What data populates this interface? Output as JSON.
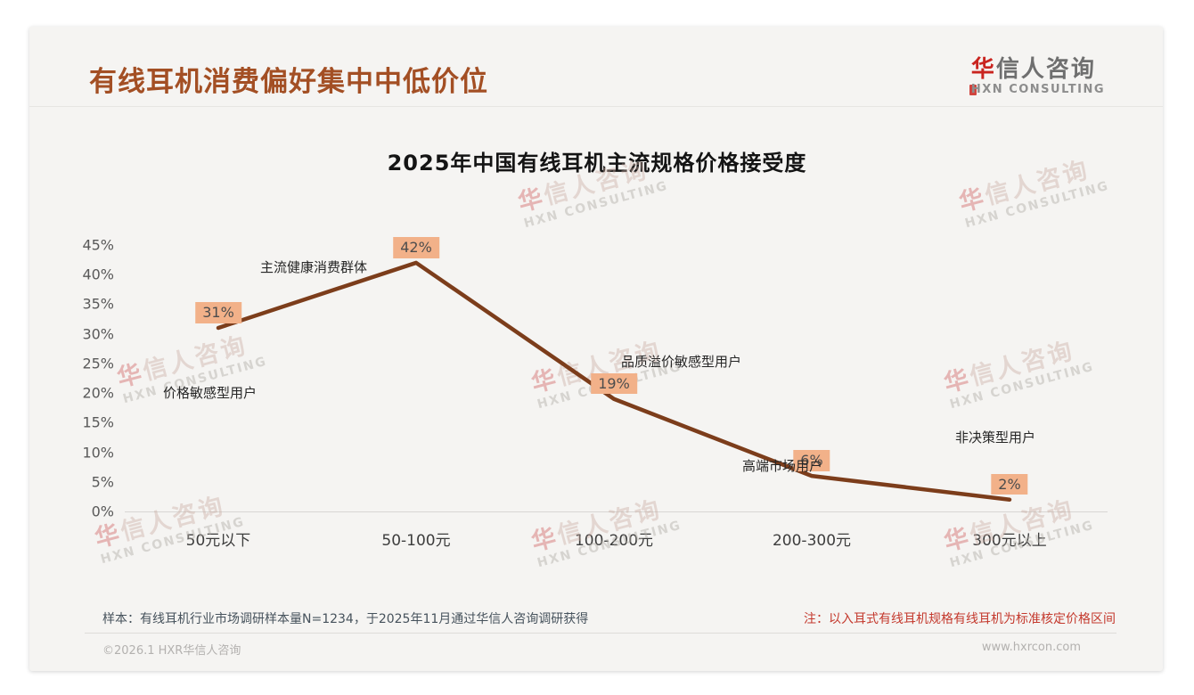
{
  "header": {
    "title": "有线耳机消费偏好集中中低价位",
    "logo_zh_accent": "华",
    "logo_zh_rest": "信人咨询",
    "logo_en": "HXN CONSULTING"
  },
  "watermark": {
    "line1_accent": "华",
    "line1_rest": "信人咨询",
    "line2": "HXN CONSULTING"
  },
  "notes": {
    "sample": "样本：有线耳机行业市场调研样本量N=1234，于2025年11月通过华信人咨询调研获得",
    "price_note": "注：以入耳式有线耳机规格有线耳机为标准核定价格区间"
  },
  "footer": {
    "copyright": "©2026.1 HXR华信人咨询",
    "website": "www.hxrcon.com"
  },
  "chart_data": {
    "type": "line",
    "title": "2025年中国有线耳机主流规格价格接受度",
    "categories": [
      "50元以下",
      "50-100元",
      "100-200元",
      "200-300元",
      "300元以上"
    ],
    "values": [
      31,
      42,
      19,
      6,
      2
    ],
    "point_labels": [
      "31%",
      "42%",
      "19%",
      "6%",
      "2%"
    ],
    "annotations": [
      "价格敏感型用户",
      "主流健康消费群体",
      "品质溢价敏感型用户",
      "高端市场用户",
      "非决策型用户"
    ],
    "xlabel": "",
    "ylabel": "",
    "ylim": [
      0,
      45
    ],
    "ytick_step": 5,
    "ytick_suffix": "%",
    "grid": false,
    "legend": false,
    "colors": {
      "line": "#7c3d1b",
      "point_label_bg": "#f2b189",
      "point_label_text": "#4d4d4d",
      "axis_line": "#d8d6d3",
      "tick_text": "#595959"
    }
  }
}
